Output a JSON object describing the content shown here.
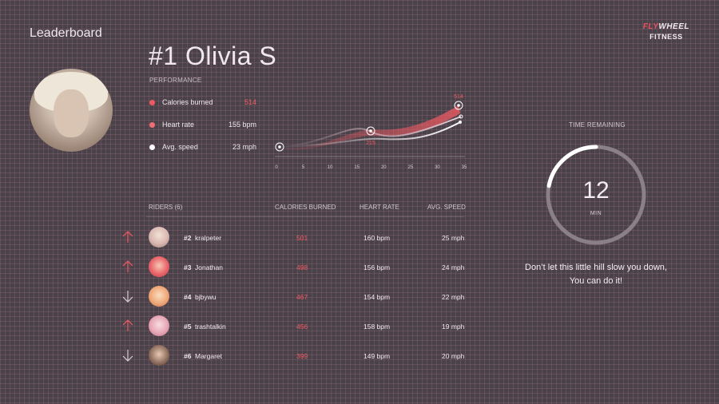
{
  "app": {
    "title": "Leaderboard"
  },
  "brand": {
    "part1": "FLY",
    "part2": "WHEEL",
    "line2": "FITNESS"
  },
  "leader": {
    "name": "#1 Olivia S",
    "performance_label": "PERFORMANCE",
    "stats": [
      {
        "label": "Calories burned",
        "value": "514",
        "color": "#ef5a62"
      },
      {
        "label": "Heart rate",
        "value": "155 bpm",
        "color": "#ef6e76"
      },
      {
        "label": "Avg. speed",
        "value": "23 mph",
        "color": "#ffffff"
      }
    ]
  },
  "chart_data": {
    "type": "line",
    "x_ticks": [
      "0",
      "5",
      "10",
      "15",
      "20",
      "25",
      "30",
      "35"
    ],
    "xlim": [
      0,
      35
    ],
    "annotations": [
      {
        "label": "514",
        "x": 34
      },
      {
        "label": "215",
        "x": 17
      }
    ],
    "colors": {
      "calories": "#ef5a62",
      "heart_rate": "#c9a9b4",
      "speed": "#ffffff"
    }
  },
  "table": {
    "headers": {
      "riders": "RIDERS (6)",
      "calories": "CALORIES BURNED",
      "heart_rate": "HEART RATE",
      "speed": "AVG. SPEED"
    },
    "rows": [
      {
        "trend": "up",
        "rank": "#2",
        "name": "kralpeter",
        "calories": "501",
        "heart_rate": "160 bpm",
        "speed": "25 mph",
        "avatar_color": "#d9b7b0"
      },
      {
        "trend": "up",
        "rank": "#3",
        "name": "Jonathan",
        "calories": "498",
        "heart_rate": "156 bpm",
        "speed": "24 mph",
        "avatar_color": "#e9646a"
      },
      {
        "trend": "down",
        "rank": "#4",
        "name": "bjbywu",
        "calories": "467",
        "heart_rate": "154 bpm",
        "speed": "22 mph",
        "avatar_color": "#f0a878"
      },
      {
        "trend": "up",
        "rank": "#5",
        "name": "trashtalkin",
        "calories": "456",
        "heart_rate": "158 bpm",
        "speed": "19 mph",
        "avatar_color": "#e7a6b4"
      },
      {
        "trend": "down",
        "rank": "#6",
        "name": "Margaret",
        "calories": "399",
        "heart_rate": "149 bpm",
        "speed": "20 mph",
        "avatar_color": "#8a6a5a"
      }
    ]
  },
  "timer": {
    "label": "TIME REMAINING",
    "value": "12",
    "unit": "MIN",
    "progress": 0.22
  },
  "message": {
    "line1": "Don’t let this little hill slow you down,",
    "line2": "You can do it!"
  }
}
